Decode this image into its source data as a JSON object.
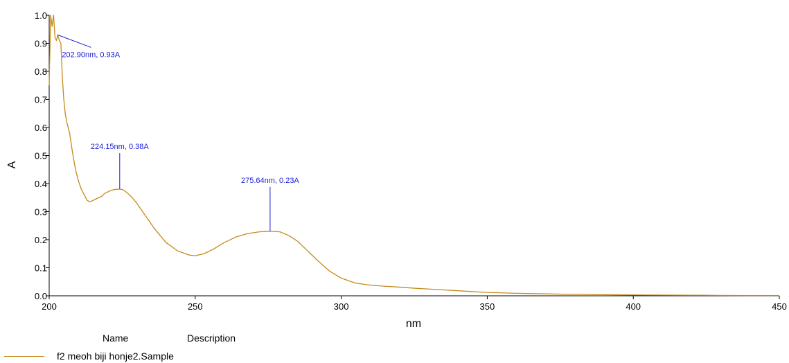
{
  "chart_data": {
    "type": "line",
    "title": "",
    "xlabel": "nm",
    "ylabel": "A",
    "xlim": [
      200,
      450
    ],
    "ylim": [
      0.0,
      1.0
    ],
    "x_ticks": [
      "200",
      "250",
      "300",
      "350",
      "400",
      "450"
    ],
    "y_ticks": [
      "0.0",
      "0.1",
      "0.2",
      "0.3",
      "0.4",
      "0.5",
      "0.6",
      "0.7",
      "0.8",
      "0.9",
      "1.0"
    ],
    "grid": false,
    "series": [
      {
        "name": "f2 meoh biji honje2.Sample",
        "color": "#c48a1a",
        "x": [
          200,
          200.5,
          201,
          201.5,
          202,
          202.5,
          202.9,
          203.5,
          204,
          204.5,
          205,
          205.5,
          206,
          206.5,
          207,
          208,
          209,
          210,
          211,
          212,
          213,
          214,
          215,
          216,
          217,
          218,
          219,
          220,
          221,
          222,
          223,
          224.15,
          225,
          226,
          228,
          230,
          233,
          236,
          240,
          244,
          248,
          250,
          253,
          256,
          260,
          264,
          268,
          272,
          275.64,
          279,
          282,
          285,
          288,
          292,
          296,
          300,
          305,
          310,
          315,
          320,
          325,
          330,
          335,
          340,
          345,
          350,
          360,
          370,
          380,
          390,
          400,
          420,
          440,
          450
        ],
        "y": [
          0.75,
          1.0,
          0.96,
          1.0,
          0.92,
          0.91,
          0.93,
          0.91,
          0.9,
          0.78,
          0.7,
          0.65,
          0.62,
          0.6,
          0.58,
          0.51,
          0.45,
          0.41,
          0.38,
          0.36,
          0.34,
          0.335,
          0.34,
          0.345,
          0.35,
          0.355,
          0.365,
          0.37,
          0.375,
          0.378,
          0.38,
          0.38,
          0.379,
          0.373,
          0.355,
          0.33,
          0.285,
          0.24,
          0.19,
          0.16,
          0.145,
          0.143,
          0.15,
          0.165,
          0.19,
          0.21,
          0.222,
          0.228,
          0.23,
          0.228,
          0.215,
          0.195,
          0.165,
          0.125,
          0.088,
          0.063,
          0.045,
          0.038,
          0.034,
          0.031,
          0.027,
          0.024,
          0.021,
          0.018,
          0.015,
          0.012,
          0.009,
          0.007,
          0.005,
          0.004,
          0.003,
          0.002,
          0.001,
          0.001
        ]
      }
    ],
    "annotations": [
      {
        "text": "202.90nm, 0.93A",
        "x": 202.9,
        "y": 0.93
      },
      {
        "text": "224.15nm, 0.38A",
        "x": 224.15,
        "y": 0.38
      },
      {
        "text": "275.64nm, 0.23A",
        "x": 275.64,
        "y": 0.23
      }
    ]
  },
  "legend": {
    "name_header": "Name",
    "description_header": "Description",
    "entries": [
      {
        "name": "f2 meoh biji honje2.Sample"
      }
    ]
  }
}
